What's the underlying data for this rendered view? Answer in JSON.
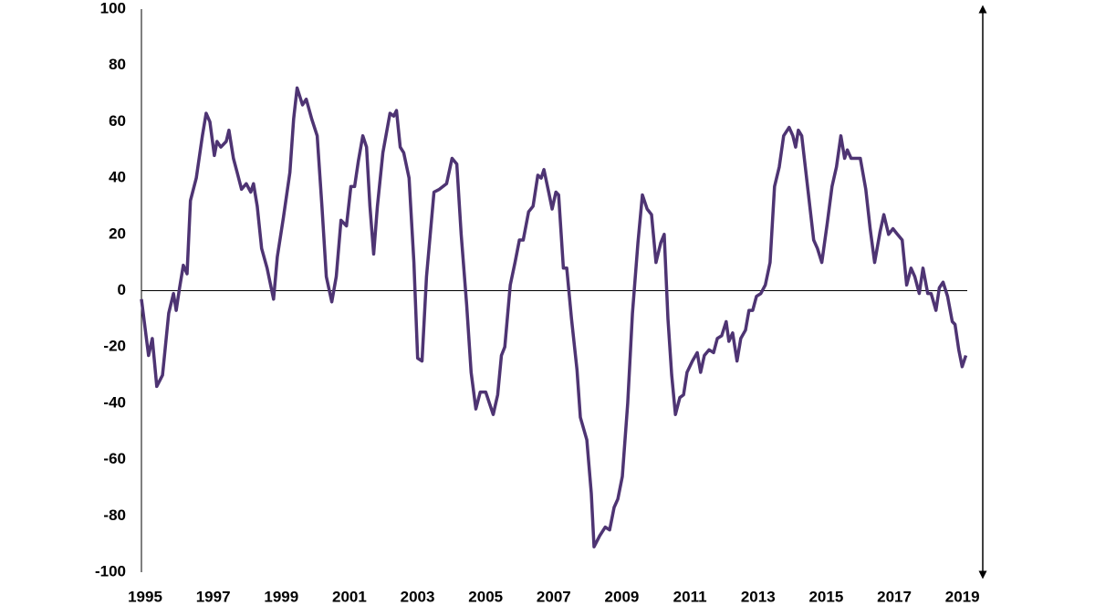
{
  "chart_data": {
    "type": "line",
    "x": [
      1995.0,
      1995.21,
      1995.32,
      1995.45,
      1995.62,
      1995.8,
      1995.94,
      1996.02,
      1996.12,
      1996.23,
      1996.34,
      1996.44,
      1996.61,
      1996.79,
      1996.9,
      1997.01,
      1997.14,
      1997.22,
      1997.33,
      1997.49,
      1997.57,
      1997.7,
      1997.81,
      1997.94,
      1998.08,
      1998.21,
      1998.29,
      1998.4,
      1998.53,
      1998.69,
      1998.88,
      1998.99,
      1999.17,
      1999.36,
      1999.47,
      1999.57,
      1999.73,
      1999.84,
      2000.0,
      2000.16,
      2000.3,
      2000.43,
      2000.59,
      2000.72,
      2000.86,
      2001.02,
      2001.15,
      2001.26,
      2001.37,
      2001.5,
      2001.61,
      2001.71,
      2001.82,
      2001.93,
      2002.09,
      2002.3,
      2002.41,
      2002.49,
      2002.6,
      2002.7,
      2002.86,
      2003.0,
      2003.11,
      2003.24,
      2003.37,
      2003.59,
      2003.75,
      2003.96,
      2004.12,
      2004.26,
      2004.39,
      2004.55,
      2004.68,
      2004.82,
      2004.95,
      2005.11,
      2005.22,
      2005.33,
      2005.46,
      2005.57,
      2005.67,
      2005.83,
      2005.97,
      2006.1,
      2006.21,
      2006.37,
      2006.5,
      2006.64,
      2006.74,
      2006.82,
      2006.96,
      2007.06,
      2007.17,
      2007.25,
      2007.39,
      2007.49,
      2007.63,
      2007.79,
      2007.89,
      2008.08,
      2008.21,
      2008.29,
      2008.46,
      2008.62,
      2008.75,
      2008.88,
      2008.99,
      2009.12,
      2009.28,
      2009.42,
      2009.58,
      2009.71,
      2009.85,
      2009.98,
      2010.11,
      2010.25,
      2010.35,
      2010.46,
      2010.57,
      2010.68,
      2010.81,
      2010.92,
      2011.02,
      2011.18,
      2011.32,
      2011.42,
      2011.53,
      2011.67,
      2011.8,
      2011.91,
      2012.04,
      2012.17,
      2012.25,
      2012.36,
      2012.49,
      2012.6,
      2012.74,
      2012.84,
      2012.95,
      2013.06,
      2013.19,
      2013.32,
      2013.46,
      2013.59,
      2013.73,
      2013.86,
      2014.02,
      2014.13,
      2014.21,
      2014.29,
      2014.39,
      2014.58,
      2014.74,
      2014.85,
      2014.98,
      2015.14,
      2015.28,
      2015.41,
      2015.54,
      2015.65,
      2015.73,
      2015.84,
      2015.97,
      2016.11,
      2016.27,
      2016.4,
      2016.53,
      2016.69,
      2016.8,
      2016.94,
      2017.07,
      2017.2,
      2017.34,
      2017.47,
      2017.6,
      2017.71,
      2017.84,
      2017.95,
      2018.09,
      2018.19,
      2018.33,
      2018.43,
      2018.54,
      2018.67,
      2018.81,
      2018.89,
      2019.0,
      2019.1,
      2019.21
    ],
    "values": [
      -3,
      -23,
      -17,
      -34,
      -30,
      -8,
      -1,
      -7,
      1,
      9,
      6,
      32,
      40,
      55,
      63,
      60,
      48,
      53,
      51,
      53,
      57,
      47,
      42,
      36,
      38,
      35,
      38,
      30,
      15,
      8,
      -3,
      12,
      26,
      42,
      61,
      72,
      66,
      68,
      61,
      55,
      30,
      5,
      -4,
      5,
      25,
      23,
      37,
      37,
      46,
      55,
      51,
      30,
      13,
      30,
      49,
      63,
      62,
      64,
      51,
      49,
      40,
      10,
      -24,
      -25,
      5,
      35,
      36,
      38,
      47,
      45,
      20,
      -5,
      -29,
      -42,
      -36,
      -36,
      -40,
      -44,
      -37,
      -23,
      -20,
      2,
      10,
      18,
      18,
      28,
      30,
      41,
      40,
      43,
      35,
      29,
      35,
      34,
      8,
      8,
      -10,
      -28,
      -45,
      -53,
      -72,
      -91,
      -87,
      -84,
      -85,
      -77,
      -74,
      -66,
      -40,
      -8,
      17,
      34,
      29,
      27,
      10,
      17,
      20,
      -10,
      -30,
      -44,
      -38,
      -37,
      -29,
      -25,
      -22,
      -29,
      -23,
      -21,
      -22,
      -17,
      -16,
      -11,
      -18,
      -15,
      -25,
      -17,
      -14,
      -7,
      -7,
      -2,
      -1,
      2,
      10,
      37,
      44,
      55,
      58,
      55,
      51,
      57,
      55,
      35,
      18,
      15,
      10,
      24,
      37,
      44,
      55,
      47,
      50,
      47,
      47,
      47,
      36,
      22,
      10,
      21,
      27,
      20,
      22,
      20,
      18,
      2,
      8,
      5,
      -1,
      8,
      -1,
      -1,
      -7,
      1,
      3,
      -2,
      -11,
      -12,
      -21,
      -27,
      -23
    ],
    "color": "#4e3473",
    "xlim": [
      1995,
      2019.25
    ],
    "xticks": [
      1995,
      1997,
      1999,
      2001,
      2003,
      2005,
      2007,
      2009,
      2011,
      2013,
      2015,
      2017,
      2019
    ],
    "ylim": [
      -100,
      100
    ],
    "yticks": [
      -100,
      -80,
      -60,
      -40,
      -20,
      0,
      20,
      40,
      60,
      80,
      100
    ]
  }
}
